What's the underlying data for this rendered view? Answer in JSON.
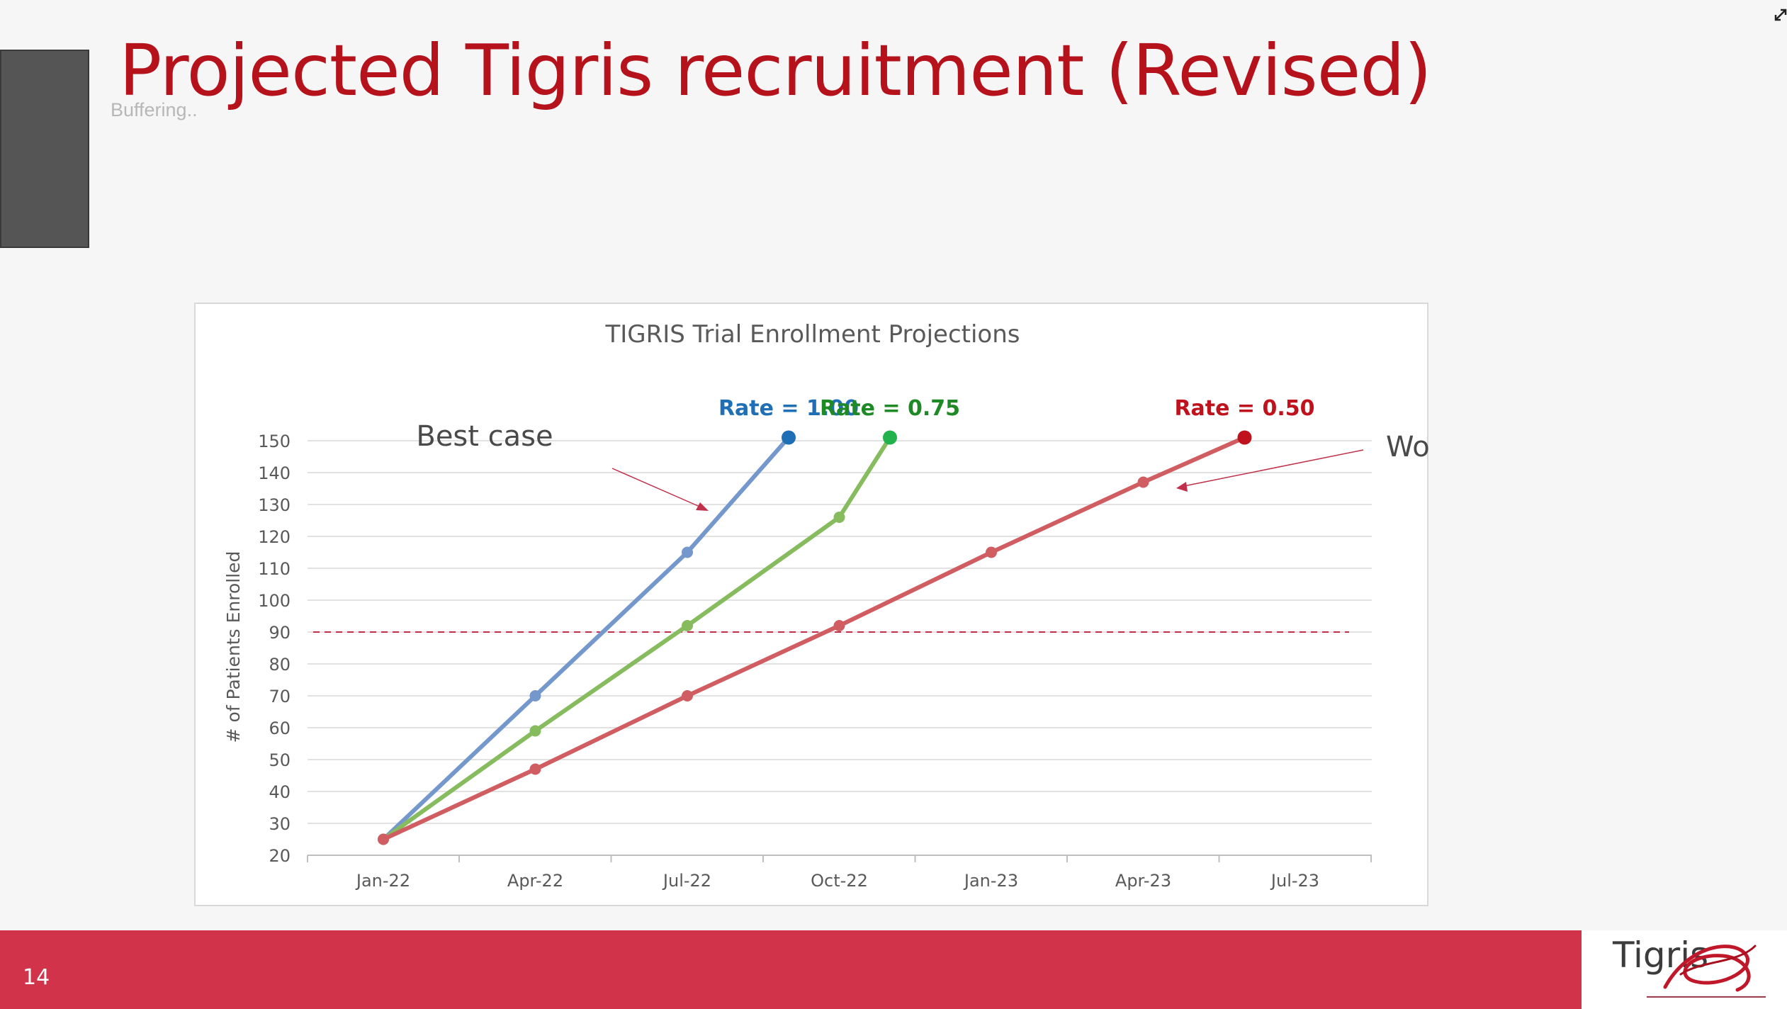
{
  "slide": {
    "title": "Projected Tigris recruitment (Revised)",
    "buffering_text": "Buffering..",
    "page_number": "14",
    "logo_text": "Tigris",
    "title_color": "#b5121b",
    "footer_color": "#d0334a"
  },
  "icons": {
    "expand": "expand-arrows-icon",
    "logo": "tigris-swirl-logo"
  },
  "chart_data": {
    "type": "line",
    "title": "TIGRIS Trial Enrollment Projections",
    "ylabel": "# of Patients Enrolled",
    "xlabel": "",
    "x_tick_labels": [
      "Jan-22",
      "Apr-22",
      "Jul-22",
      "Oct-22",
      "Jan-23",
      "Apr-23",
      "Jul-23"
    ],
    "y_ticks": [
      20,
      30,
      40,
      50,
      60,
      70,
      80,
      90,
      100,
      110,
      120,
      130,
      140,
      150
    ],
    "ylim": [
      20,
      150
    ],
    "grid": true,
    "reference_line": {
      "y": 90,
      "style": "dashed",
      "color": "#c0304a"
    },
    "series": [
      {
        "name": "Rate = 1.00",
        "color": "#7497cc",
        "end_color": "#1f6fb6",
        "label_color": "#1f6fb6",
        "x": [
          "Jan-22",
          "Apr-22",
          "Jul-22",
          "Sep-22"
        ],
        "values": [
          25,
          70,
          115,
          151
        ]
      },
      {
        "name": "Rate = 0.75",
        "color": "#86bb5e",
        "end_color": "#22b14c",
        "label_color": "#1d8a26",
        "x": [
          "Jan-22",
          "Apr-22",
          "Jul-22",
          "Oct-22",
          "Nov-22"
        ],
        "values": [
          25,
          59,
          92,
          126,
          151
        ]
      },
      {
        "name": "Rate = 0.50",
        "color": "#d05d62",
        "end_color": "#c0121c",
        "label_color": "#c0121c",
        "x": [
          "Jan-22",
          "Apr-22",
          "Jul-22",
          "Oct-22",
          "Jan-23",
          "Apr-23",
          "Jun-23"
        ],
        "values": [
          25,
          47,
          70,
          92,
          115,
          137,
          151
        ]
      }
    ],
    "annotations": [
      {
        "text": "Best case",
        "color": "#4a4a4a"
      },
      {
        "text": "Worst case",
        "color": "#4a4a4a"
      }
    ]
  }
}
